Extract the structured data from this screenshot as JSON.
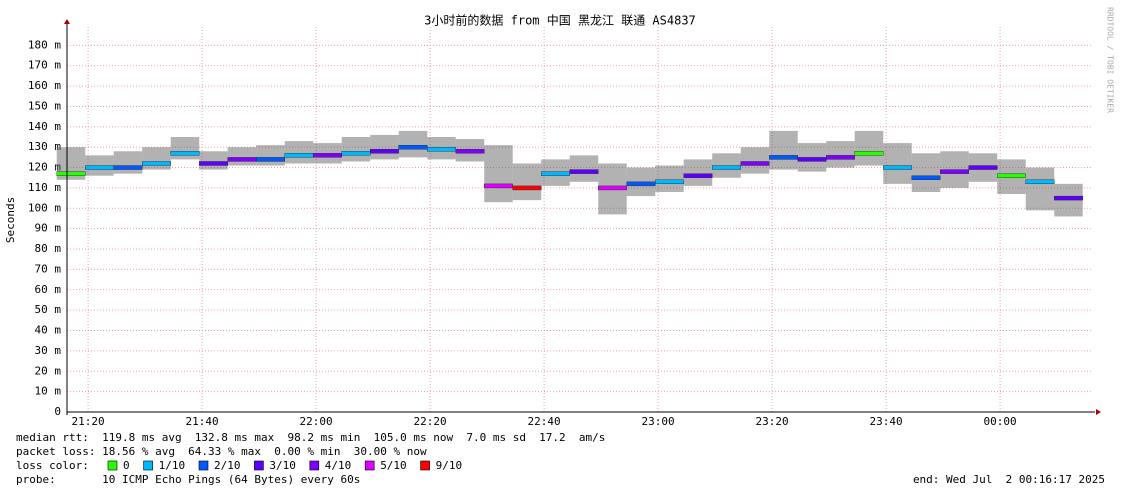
{
  "chart_data": {
    "type": "smokeping",
    "title": "3小时前的数据 from 中国 黑龙江 联通 AS4837",
    "y_label": "Seconds",
    "watermark": "RRDTOOL / TOBI OETIKER",
    "x": [
      1277,
      1282,
      1287,
      1292,
      1297,
      1302,
      1307,
      1312,
      1317,
      1322,
      1327,
      1332,
      1337,
      1342,
      1347,
      1352,
      1357,
      1362,
      1367,
      1372,
      1377,
      1382,
      1387,
      1392,
      1397,
      1402,
      1407,
      1412,
      1417,
      1422,
      1427,
      1432,
      1437,
      1442,
      1447,
      1452
    ],
    "median": [
      117,
      120,
      120,
      122,
      127,
      122,
      124,
      124,
      126,
      126,
      127,
      128,
      130,
      129,
      128,
      111,
      110,
      117,
      118,
      110,
      112,
      113,
      116,
      120,
      122,
      125,
      124,
      125,
      127,
      120,
      115,
      118,
      120,
      116,
      113,
      105
    ],
    "colors": [
      "#26ff00",
      "#00b8ff",
      "#0059ff",
      "#00b8ff",
      "#00b8ff",
      "#5e00ff",
      "#7e00ff",
      "#0059ff",
      "#00b8ff",
      "#7e00ff",
      "#00b8ff",
      "#5e00ff",
      "#0059ff",
      "#00b8ff",
      "#7e00ff",
      "#dd00ff",
      "#ff0000",
      "#00b8ff",
      "#5e00ff",
      "#dd00ff",
      "#0059ff",
      "#00b8ff",
      "#5e00ff",
      "#00b8ff",
      "#7e00ff",
      "#0059ff",
      "#5e00ff",
      "#7e00ff",
      "#26ff00",
      "#00b8ff",
      "#0059ff",
      "#7e00ff",
      "#5e00ff",
      "#26ff00",
      "#00b8ff",
      "#5e00ff"
    ],
    "smoke_min": [
      114,
      116,
      117,
      119,
      124,
      119,
      121,
      121,
      122,
      122,
      123,
      124,
      125,
      124,
      123,
      103,
      104,
      111,
      113,
      97,
      106,
      108,
      111,
      115,
      117,
      119,
      118,
      120,
      121,
      112,
      108,
      110,
      113,
      107,
      99,
      96
    ],
    "smoke_max": [
      130,
      126,
      128,
      130,
      135,
      128,
      130,
      131,
      133,
      132,
      135,
      136,
      138,
      135,
      134,
      131,
      122,
      124,
      126,
      122,
      120,
      121,
      124,
      127,
      130,
      138,
      132,
      133,
      138,
      132,
      127,
      128,
      127,
      124,
      120,
      112
    ],
    "xlim": [
      1276.3,
      1456.3
    ],
    "xticks": [
      {
        "value": 1280,
        "label": "21:20"
      },
      {
        "value": 1300,
        "label": "21:40"
      },
      {
        "value": 1320,
        "label": "22:00"
      },
      {
        "value": 1340,
        "label": "22:20"
      },
      {
        "value": 1360,
        "label": "22:40"
      },
      {
        "value": 1380,
        "label": "23:00"
      },
      {
        "value": 1400,
        "label": "23:20"
      },
      {
        "value": 1420,
        "label": "23:40"
      },
      {
        "value": 1440,
        "label": "00:00"
      }
    ],
    "ylim": [
      0,
      189
    ],
    "yticks": [
      0,
      {
        "value": 10,
        "label": "10 m"
      },
      {
        "value": 20,
        "label": "20 m"
      },
      {
        "value": 30,
        "label": "30 m"
      },
      {
        "value": 40,
        "label": "40 m"
      },
      {
        "value": 50,
        "label": "50 m"
      },
      {
        "value": 60,
        "label": "60 m"
      },
      {
        "value": 70,
        "label": "70 m"
      },
      {
        "value": 80,
        "label": "80 m"
      },
      {
        "value": 90,
        "label": "90 m"
      },
      {
        "value": 100,
        "label": "100 m"
      },
      {
        "value": 110,
        "label": "110 m"
      },
      {
        "value": 120,
        "label": "120 m"
      },
      {
        "value": 130,
        "label": "130 m"
      },
      {
        "value": 140,
        "label": "140 m"
      },
      {
        "value": 150,
        "label": "150 m"
      },
      {
        "value": 160,
        "label": "160 m"
      },
      {
        "value": 170,
        "label": "170 m"
      },
      {
        "value": 180,
        "label": "180 m"
      }
    ],
    "grid": true,
    "stats": [
      "median rtt:  119.8 ms avg  132.8 ms max  98.2 ms min  105.0 ms now  7.0 ms sd  17.2  am/s",
      "packet loss: 18.56 % avg  64.33 % max  0.00 % min  30.00 % now"
    ],
    "legend_title": "loss color:",
    "legend": [
      {
        "label": "0",
        "color": "#26ff00"
      },
      {
        "label": "1/10",
        "color": "#00b8ff"
      },
      {
        "label": "2/10",
        "color": "#0059ff"
      },
      {
        "label": "3/10",
        "color": "#5e00ff"
      },
      {
        "label": "4/10",
        "color": "#7e00ff"
      },
      {
        "label": "5/10",
        "color": "#dd00ff"
      },
      {
        "label": "9/10",
        "color": "#ff0000"
      }
    ],
    "probe": "probe:       10 ICMP Echo Pings (64 Bytes) every 60s",
    "end": "end: Wed Jul  2 00:16:17 2025"
  }
}
